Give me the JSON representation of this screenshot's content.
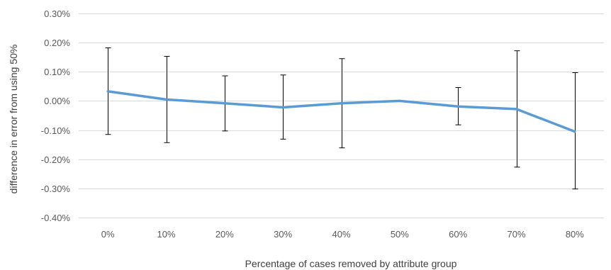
{
  "chart_data": {
    "type": "line",
    "title": "",
    "xlabel": "Percentage of cases removed by attribute group",
    "ylabel": "difference in error from using 50%",
    "categories": [
      "0%",
      "10%",
      "20%",
      "30%",
      "40%",
      "50%",
      "60%",
      "70%",
      "80%"
    ],
    "y_ticks": [
      "0.30%",
      "0.20%",
      "0.10%",
      "0.00%",
      "-0.10%",
      "-0.20%",
      "-0.30%",
      "-0.40%"
    ],
    "ylim": [
      -0.4,
      0.3
    ],
    "y_unit": "%",
    "grid": true,
    "series": [
      {
        "values": [
          0.033,
          0.005,
          -0.008,
          -0.022,
          -0.008,
          0.0,
          -0.019,
          -0.028,
          -0.105
        ],
        "error_high": [
          0.182,
          0.153,
          0.086,
          0.089,
          0.145,
          0.0,
          0.046,
          0.172,
          0.097
        ],
        "error_low": [
          -0.115,
          -0.143,
          -0.103,
          -0.131,
          -0.161,
          0.0,
          -0.082,
          -0.227,
          -0.302
        ]
      }
    ],
    "colors": {
      "line": "#5B9BD5",
      "error_bar": "#000000",
      "grid": "#D9D9D9",
      "tick_text": "#595959"
    }
  }
}
